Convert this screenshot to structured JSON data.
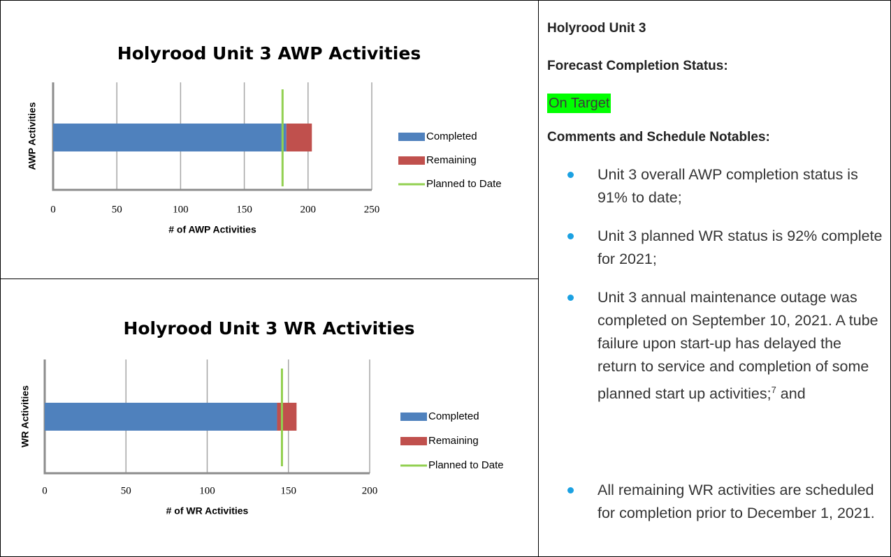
{
  "chart_data": [
    {
      "type": "bar",
      "orientation": "horizontal",
      "stacked": true,
      "title": "Holyrood Unit 3 AWP Activities",
      "x_label": "# of AWP Activities",
      "y_label": "AWP Activities",
      "xlim": [
        0,
        250
      ],
      "xticks": [
        0,
        50,
        100,
        150,
        200,
        250
      ],
      "grid": true,
      "legend": "right",
      "series": [
        {
          "name": "Completed",
          "color": "#4f81bd",
          "values": [
            183
          ]
        },
        {
          "name": "Remaining",
          "color": "#c0504d",
          "values": [
            20
          ]
        },
        {
          "name": "Planned to Date",
          "color": "#92d050",
          "type": "line",
          "values": [
            180
          ]
        }
      ]
    },
    {
      "type": "bar",
      "orientation": "horizontal",
      "stacked": true,
      "title": "Holyrood Unit 3 WR Activities",
      "x_label": "# of WR Activities",
      "y_label": "WR Activities",
      "xlim": [
        0,
        200
      ],
      "xticks": [
        0,
        50,
        100,
        150,
        200
      ],
      "grid": true,
      "legend": "right",
      "series": [
        {
          "name": "Completed",
          "color": "#4f81bd",
          "values": [
            143
          ]
        },
        {
          "name": "Remaining",
          "color": "#c0504d",
          "values": [
            12
          ]
        },
        {
          "name": "Planned to Date",
          "color": "#92d050",
          "type": "line",
          "values": [
            146
          ]
        }
      ]
    }
  ],
  "panel": {
    "heading": "Holyrood Unit 3",
    "status_label": "Forecast Completion Status:",
    "status": "On Target",
    "comments_label": "Comments and Schedule Notables:",
    "bullets": [
      "Unit 3 overall AWP completion status is 91% to date;",
      "Unit 3 planned WR status is 92% complete for 2021;",
      {
        "text": "Unit 3 annual maintenance outage was completed on September 10, 2021. A tube failure upon start-up has delayed the return to service and completion of some planned start up activities;",
        "footnote": "7",
        "tail": " and"
      },
      "All remaining WR activities are scheduled for completion prior to December 1, 2021."
    ]
  }
}
